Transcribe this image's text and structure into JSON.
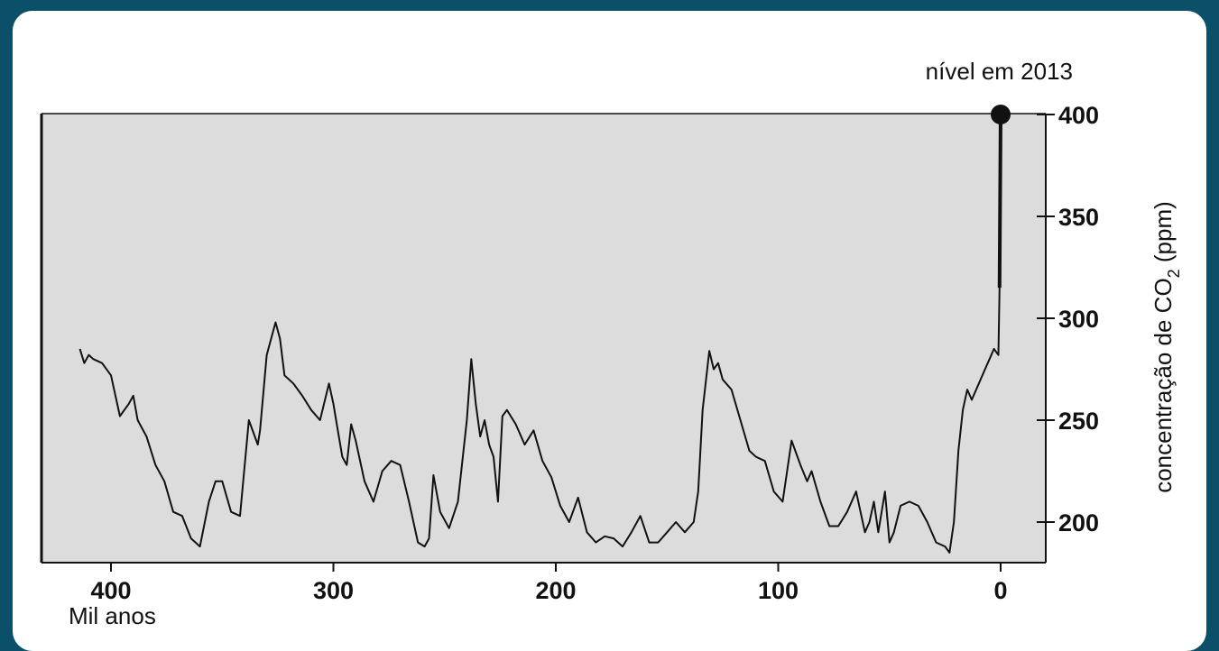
{
  "colors": {
    "page_background": "#0b5068",
    "card": "#ffffff",
    "plot_background": "#dcdcdc",
    "line": "#111111"
  },
  "chart_data": {
    "type": "line",
    "title": "",
    "annotation": "nível em 2013",
    "annotation_point": {
      "x": 0,
      "y": 400
    },
    "xlabel": "Mil anos",
    "ylabel": "concentração de CO₂ (ppm)",
    "ylabel_parts": {
      "pre": "concentração de CO",
      "sub": "2",
      "post": " (ppm)"
    },
    "x_axis_reversed": true,
    "xlim": [
      418,
      -18
    ],
    "ylim": [
      180,
      400
    ],
    "y_axis_side": "right",
    "xticks": [
      400,
      300,
      200,
      100,
      0
    ],
    "xtick_labels": [
      "400",
      "300",
      "200",
      "100",
      "0"
    ],
    "yticks": [
      200,
      250,
      300,
      350,
      400
    ],
    "ytick_labels": [
      "200",
      "250",
      "300",
      "350",
      "400"
    ],
    "grid": false,
    "series": [
      {
        "x": [
          414,
          412,
          410,
          408,
          404,
          400,
          396,
          392,
          390,
          388,
          384,
          380,
          376,
          372,
          368,
          364,
          360,
          356,
          353,
          350,
          346,
          342,
          338,
          334,
          333,
          330,
          326,
          324,
          322,
          318,
          314,
          310,
          306,
          302,
          300,
          298,
          296,
          294,
          292,
          290,
          286,
          282,
          278,
          274,
          270,
          266,
          262,
          259,
          257,
          255,
          252,
          248,
          244,
          240,
          238,
          236,
          234,
          232,
          230,
          228,
          226,
          224,
          222,
          218,
          214,
          210,
          206,
          202,
          198,
          194,
          190,
          186,
          182,
          178,
          174,
          170,
          166,
          162,
          158,
          154,
          150,
          146,
          142,
          138,
          136,
          134,
          131,
          129,
          127,
          125,
          121,
          117,
          113,
          110,
          106,
          102,
          98,
          94,
          90,
          87,
          85,
          81,
          77,
          73,
          69,
          65,
          61,
          59,
          57,
          55,
          52,
          50,
          48,
          45,
          41,
          37,
          33,
          29,
          25,
          23,
          21,
          19,
          17,
          15,
          13,
          11,
          9,
          7,
          5,
          3,
          1,
          0.5,
          0
        ],
        "y": [
          285,
          278,
          282,
          280,
          278,
          272,
          252,
          258,
          262,
          250,
          242,
          228,
          220,
          205,
          203,
          192,
          188,
          210,
          220,
          220,
          205,
          203,
          250,
          238,
          245,
          282,
          298,
          290,
          272,
          268,
          262,
          255,
          250,
          268,
          258,
          245,
          232,
          228,
          248,
          240,
          220,
          210,
          225,
          230,
          228,
          210,
          190,
          188,
          192,
          223,
          205,
          197,
          210,
          250,
          280,
          258,
          242,
          250,
          238,
          232,
          210,
          252,
          255,
          248,
          238,
          245,
          230,
          222,
          208,
          200,
          212,
          195,
          190,
          193,
          192,
          188,
          195,
          203,
          190,
          190,
          195,
          200,
          195,
          200,
          215,
          255,
          284,
          275,
          278,
          270,
          265,
          250,
          235,
          232,
          230,
          215,
          210,
          240,
          228,
          220,
          225,
          210,
          198,
          198,
          205,
          215,
          195,
          200,
          210,
          195,
          215,
          190,
          195,
          208,
          210,
          208,
          200,
          190,
          188,
          185,
          200,
          235,
          255,
          265,
          260,
          265,
          270,
          275,
          280,
          285,
          282,
          315,
          400
        ]
      }
    ]
  }
}
